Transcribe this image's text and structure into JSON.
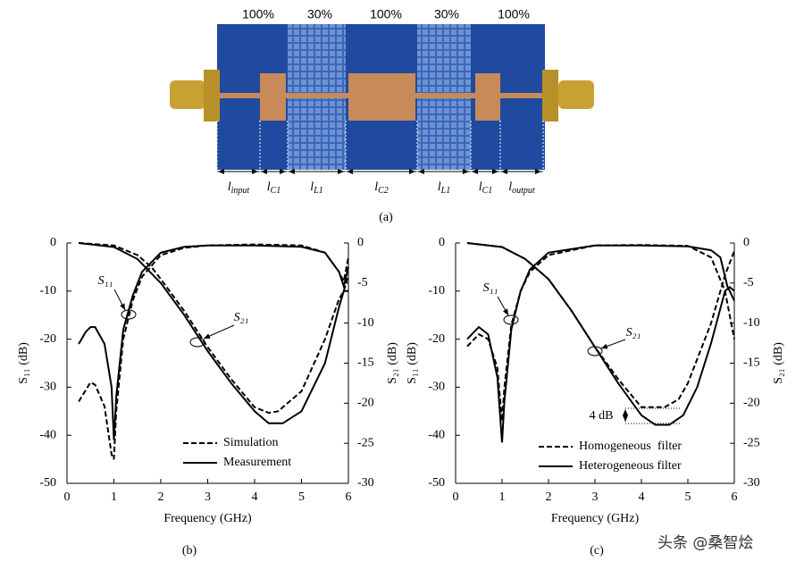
{
  "photo": {
    "fill_labels": [
      "100%",
      "30%",
      "100%",
      "30%",
      "100%"
    ],
    "segment_labels": [
      {
        "main": "l",
        "sub": "input"
      },
      {
        "main": "l",
        "sub": "C1"
      },
      {
        "main": "l",
        "sub": "L1"
      },
      {
        "main": "l",
        "sub": "C2"
      },
      {
        "main": "l",
        "sub": "L1"
      },
      {
        "main": "l",
        "sub": "C1"
      },
      {
        "main": "l",
        "sub": "output"
      }
    ],
    "caption": "(a)"
  },
  "chart_data": [
    {
      "type": "line",
      "caption": "(b)",
      "x_label": "Frequency (GHz)",
      "y_label": "S₁₁ (dB)",
      "y2_label": "S₂₁ (dB)",
      "xlim": [
        0,
        6
      ],
      "xticks": [
        0,
        1,
        2,
        3,
        4,
        5,
        6
      ],
      "ylim": [
        -50,
        0
      ],
      "yticks": [
        -50,
        -40,
        -30,
        -20,
        -10,
        0
      ],
      "y2lim": [
        -30,
        0
      ],
      "y2ticks": [
        -30,
        -25,
        -20,
        -15,
        -10,
        -5,
        0
      ],
      "annotations": [
        "S₁₁",
        "S₂₁"
      ],
      "series": [
        {
          "name": "Simulation",
          "color": "#000000",
          "line_style": "dashed",
          "x": [
            0.25,
            0.5,
            0.6,
            0.8,
            0.95,
            1.0,
            1.05,
            1.2,
            1.4,
            1.6,
            2,
            2.5,
            3,
            4,
            5,
            5.5,
            5.8,
            5.9,
            6
          ],
          "values": [
            -33,
            -29,
            -29.5,
            -34,
            -44,
            -45,
            -35,
            -20,
            -12,
            -7,
            -2.5,
            -1,
            -0.5,
            -0.3,
            -0.5,
            -2,
            -6,
            -8,
            -3
          ]
        },
        {
          "name": "Measurement",
          "color": "#000000",
          "line_style": "solid",
          "x": [
            0.25,
            0.4,
            0.5,
            0.6,
            0.8,
            0.95,
            1.0,
            1.05,
            1.2,
            1.4,
            1.6,
            2,
            2.5,
            3,
            4,
            5,
            5.5,
            5.8,
            5.9,
            6
          ],
          "values": [
            -21,
            -18.5,
            -17.5,
            -17.5,
            -21,
            -30,
            -41,
            -32,
            -18,
            -11,
            -6,
            -2,
            -0.8,
            -0.5,
            -0.5,
            -0.8,
            -2,
            -6,
            -9,
            -5
          ]
        },
        {
          "name": "Simulation",
          "color": "#000000",
          "line_style": "dashed",
          "axis": "y2",
          "x": [
            0.25,
            1,
            1.5,
            1.8,
            2,
            2.5,
            3,
            3.5,
            4,
            4.3,
            4.5,
            5,
            5.5,
            5.8,
            5.9,
            6
          ],
          "values": [
            0,
            -0.3,
            -1.5,
            -3,
            -4.5,
            -8.5,
            -13,
            -17,
            -20.5,
            -21.2,
            -21,
            -18.5,
            -12,
            -7,
            -6,
            -4
          ]
        },
        {
          "name": "Measurement",
          "color": "#000000",
          "line_style": "solid",
          "axis": "y2",
          "x": [
            0.25,
            1,
            1.5,
            2,
            2.5,
            3,
            3.5,
            4,
            4.3,
            4.6,
            5,
            5.5,
            5.8,
            5.9,
            6
          ],
          "values": [
            0,
            -0.5,
            -2,
            -5,
            -9,
            -13.5,
            -17.5,
            -21,
            -22.5,
            -22.5,
            -21,
            -15,
            -8,
            -6,
            -6
          ]
        }
      ]
    },
    {
      "type": "line",
      "caption": "(c)",
      "x_label": "Frequency (GHz)",
      "y_label": "S₁₁ (dB)",
      "y2_label": "S₂₁ (dB)",
      "xlim": [
        0,
        6
      ],
      "xticks": [
        0,
        1,
        2,
        3,
        4,
        5,
        6
      ],
      "ylim": [
        -50,
        0
      ],
      "yticks": [
        -50,
        -40,
        -30,
        -20,
        -10,
        0
      ],
      "y2lim": [
        -30,
        0
      ],
      "y2ticks": [
        -30,
        -25,
        -20,
        -15,
        -10,
        -5,
        0
      ],
      "annotations": [
        "S₁₁",
        "S₂₁",
        "4 dB"
      ],
      "series": [
        {
          "name": "Homogeneous  filter",
          "color": "#000000",
          "line_style": "dashed",
          "x": [
            0.25,
            0.5,
            0.7,
            0.9,
            1.0,
            1.05,
            1.2,
            1.4,
            1.6,
            2,
            3,
            4,
            5,
            5.5,
            5.8,
            6
          ],
          "values": [
            -21.5,
            -19,
            -20,
            -26,
            -37,
            -30,
            -17,
            -10,
            -6,
            -2.5,
            -0.5,
            -0.4,
            -0.6,
            -3,
            -10,
            -20
          ]
        },
        {
          "name": "Heterogeneous filter",
          "color": "#000000",
          "line_style": "solid",
          "x": [
            0.25,
            0.5,
            0.7,
            0.9,
            1.0,
            1.05,
            1.2,
            1.4,
            1.6,
            2,
            3,
            4,
            5,
            5.5,
            5.7,
            5.85,
            6
          ],
          "values": [
            -20,
            -17.5,
            -19,
            -28,
            -41.5,
            -33,
            -18,
            -10,
            -5.5,
            -2,
            -0.5,
            -0.5,
            -0.7,
            -1.5,
            -3,
            -9,
            -12
          ]
        },
        {
          "name": "Homogeneous  filter",
          "color": "#000000",
          "line_style": "dashed",
          "axis": "y2",
          "x": [
            0.25,
            1,
            1.5,
            2,
            2.5,
            3,
            3.5,
            4,
            4.5,
            4.8,
            5,
            5.5,
            5.8,
            6
          ],
          "values": [
            0,
            -0.5,
            -2,
            -4.5,
            -8.5,
            -13,
            -17,
            -20.5,
            -20.5,
            -19.5,
            -17.5,
            -10,
            -4,
            -1
          ]
        },
        {
          "name": "Heterogeneous filter",
          "color": "#000000",
          "line_style": "solid",
          "axis": "y2",
          "x": [
            0.25,
            1,
            1.5,
            2,
            2.5,
            3,
            3.5,
            4,
            4.3,
            4.6,
            4.9,
            5.2,
            5.5,
            5.8,
            5.9,
            6
          ],
          "values": [
            0,
            -0.5,
            -2,
            -4.5,
            -8.5,
            -13,
            -17.5,
            -21.5,
            -22.7,
            -22.7,
            -21.5,
            -18,
            -12.5,
            -6,
            -5.5,
            -6
          ]
        }
      ]
    }
  ],
  "watermark": "头条 @桑智烩"
}
